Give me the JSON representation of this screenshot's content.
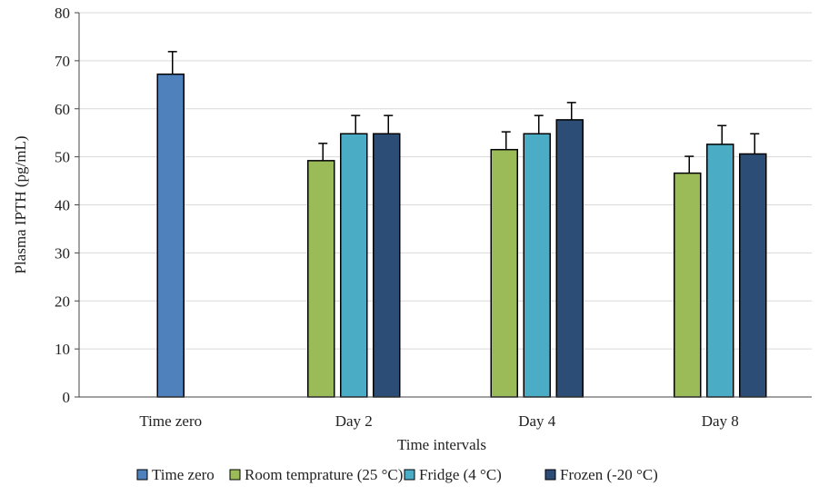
{
  "chart_data": {
    "type": "bar",
    "title": "",
    "xlabel": "Time intervals",
    "ylabel": "Plasma IPTH (pg/mL)",
    "ylim": [
      0,
      80
    ],
    "yticks": [
      0,
      10,
      20,
      30,
      40,
      50,
      60,
      70,
      80
    ],
    "grid": true,
    "legend_position": "bottom",
    "categories": [
      "Time zero",
      "Day 2",
      "Day 4",
      "Day 8"
    ],
    "series": [
      {
        "name": "Time zero",
        "color": "#4f81bd",
        "values": [
          67.2,
          null,
          null,
          null
        ],
        "errors": [
          4.7,
          null,
          null,
          null
        ]
      },
      {
        "name": "Room temprature (25 °C)",
        "color": "#9bbb59",
        "values": [
          null,
          49.2,
          51.5,
          46.6
        ],
        "errors": [
          null,
          3.6,
          3.7,
          3.5
        ]
      },
      {
        "name": "Fridge (4 °C)",
        "color": "#4bacc6",
        "values": [
          null,
          54.8,
          54.8,
          52.6
        ],
        "errors": [
          null,
          3.8,
          3.8,
          3.9
        ]
      },
      {
        "name": "Frozen (-20 °C)",
        "color": "#2c4d75",
        "values": [
          null,
          54.8,
          57.7,
          50.6
        ],
        "errors": [
          null,
          3.8,
          3.6,
          4.2
        ]
      }
    ]
  }
}
